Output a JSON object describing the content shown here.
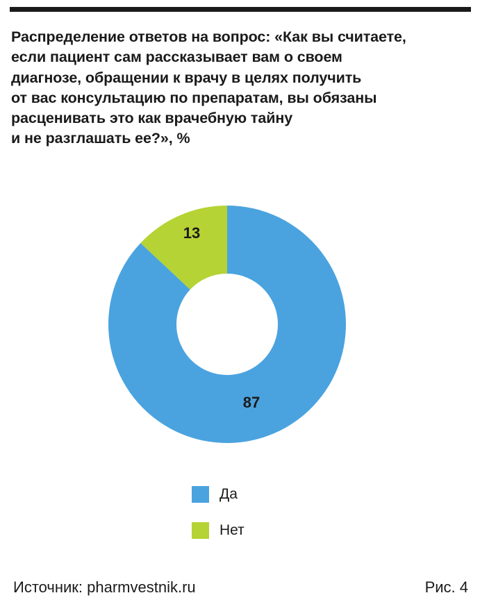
{
  "title_lines": [
    "Распределение ответов на вопрос: «Как вы считаете,",
    "если пациент сам рассказывает вам о своем",
    "диагнозе, обращении к врачу в целях получить",
    "от вас консультацию по препаратам, вы обязаны",
    "расценивать это как врачебную тайну",
    "и не разглашать ее?», %"
  ],
  "chart_data": {
    "type": "pie",
    "donut": true,
    "title": "Распределение ответов на вопрос: «Как вы считаете, если пациент сам рассказывает вам о своем диагнозе, обращении к врачу в целях получить от вас консультацию по препаратам, вы обязаны расценивать это как врачебную тайну и не разглашать ее?», %",
    "categories": [
      "Да",
      "Нет"
    ],
    "values": [
      87,
      13
    ],
    "colors": [
      "#4aa3df",
      "#b5d334"
    ],
    "data_labels": [
      "87",
      "13"
    ],
    "legend_position": "bottom"
  },
  "legend": [
    {
      "label": "Да",
      "color": "#4aa3df"
    },
    {
      "label": "Нет",
      "color": "#b5d334"
    }
  ],
  "source": "Источник: pharmvestnik.ru",
  "figure_number": "Рис. 4"
}
